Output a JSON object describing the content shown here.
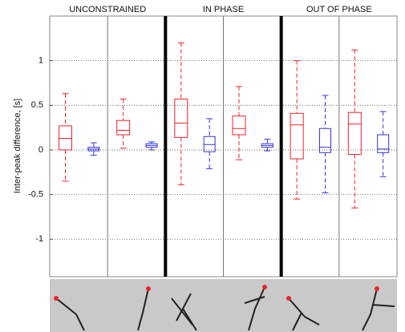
{
  "chart_data": {
    "type": "box",
    "groups": [
      "UNCONSTRAINED",
      "IN PHASE",
      "OUT OF PHASE"
    ],
    "ylabel": "Inter-peak difference, [s]",
    "categories": [
      null,
      null,
      null,
      null,
      null,
      null
    ],
    "ylim": [
      -1.42,
      1.5
    ],
    "yticks": [
      1,
      0.5,
      0,
      -0.5,
      -1
    ],
    "grid": true,
    "series": [
      {
        "color": "#e8262b",
        "boxes": [
          {
            "min": -0.35,
            "q1": 0.0,
            "median": 0.13,
            "q3": 0.27,
            "max": 0.63
          },
          {
            "min": 0.02,
            "q1": 0.17,
            "median": 0.22,
            "q3": 0.33,
            "max": 0.57
          },
          {
            "min": -0.39,
            "q1": 0.14,
            "median": 0.3,
            "q3": 0.57,
            "max": 1.2
          },
          {
            "min": -0.11,
            "q1": 0.17,
            "median": 0.24,
            "q3": 0.38,
            "max": 0.71
          },
          {
            "min": -0.55,
            "q1": -0.1,
            "median": 0.28,
            "q3": 0.41,
            "max": 1.0
          },
          {
            "min": -0.65,
            "q1": -0.05,
            "median": 0.29,
            "q3": 0.42,
            "max": 1.12
          }
        ]
      },
      {
        "color": "#3535d8",
        "boxes": [
          {
            "min": -0.06,
            "q1": -0.01,
            "median": 0.01,
            "q3": 0.03,
            "max": 0.08
          },
          {
            "min": 0.0,
            "q1": 0.03,
            "median": 0.05,
            "q3": 0.07,
            "max": 0.09
          },
          {
            "min": -0.21,
            "q1": -0.02,
            "median": 0.06,
            "q3": 0.15,
            "max": 0.35
          },
          {
            "min": -0.01,
            "q1": 0.03,
            "median": 0.05,
            "q3": 0.07,
            "max": 0.12
          },
          {
            "min": -0.48,
            "q1": -0.03,
            "median": 0.03,
            "q3": 0.24,
            "max": 0.61
          },
          {
            "min": -0.3,
            "q1": -0.03,
            "median": 0.01,
            "q3": 0.17,
            "max": 0.43
          }
        ]
      }
    ]
  }
}
